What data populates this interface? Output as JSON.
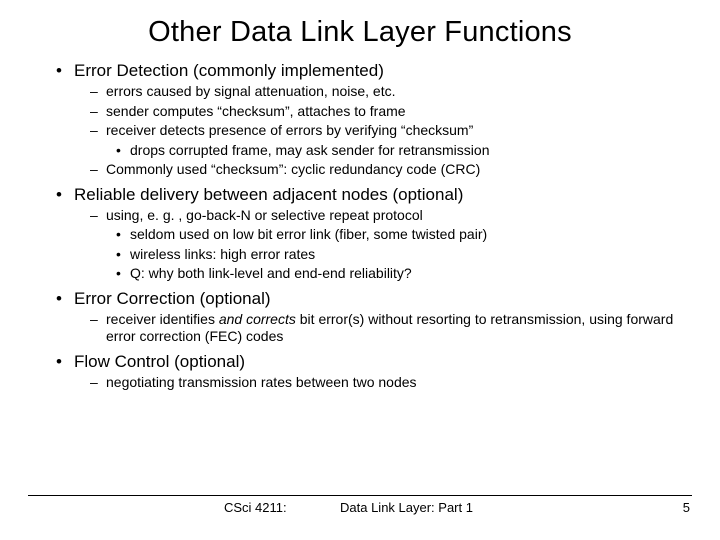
{
  "title": "Other Data Link Layer Functions",
  "sections": [
    {
      "heading": "Error Detection (commonly implemented)",
      "subs": [
        {
          "t": "errors caused by signal attenuation, noise, etc."
        },
        {
          "t": "sender computes “checksum”, attaches to frame"
        },
        {
          "t": "receiver detects presence of errors by verifying “checksum”",
          "sub3": [
            {
              "t": "drops corrupted frame, may ask sender for retransmission"
            }
          ]
        },
        {
          "t": "Commonly used “checksum”: cyclic redundancy code (CRC)"
        }
      ]
    },
    {
      "heading": "Reliable delivery between adjacent nodes (optional)",
      "subs": [
        {
          "t": "using, e. g. , go-back-N or selective repeat protocol",
          "sub3": [
            {
              "t": "seldom used on low bit error link (fiber, some twisted pair)"
            },
            {
              "t": "wireless links: high error rates"
            },
            {
              "t": "Q: why both link-level and end-end reliability?"
            }
          ]
        }
      ]
    },
    {
      "heading": "Error Correction (optional)",
      "subs": [
        {
          "html": "receiver identifies <span class=\"italic\">and corrects</span> bit error(s) without resorting to retransmission, using forward error correction (FEC) codes"
        }
      ]
    },
    {
      "heading": "Flow Control (optional)",
      "subs": [
        {
          "t": "negotiating transmission rates between two nodes"
        }
      ]
    }
  ],
  "footer": {
    "course": "CSci 4211:",
    "title": "Data Link Layer: Part 1",
    "page": "5"
  },
  "style": {
    "background_color": "#ffffff",
    "text_color": "#000000",
    "font_family": "Comic Sans MS",
    "title_fontsize": 29,
    "b1_fontsize": 17,
    "b2_fontsize": 14,
    "b3_fontsize": 14,
    "footer_fontsize": 13,
    "slide_width": 720,
    "slide_height": 540
  }
}
